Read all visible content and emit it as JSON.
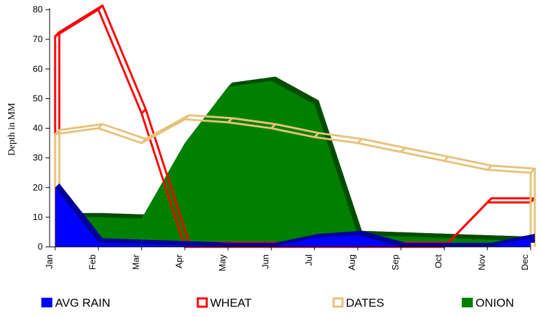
{
  "chart_data": {
    "type": "area",
    "title": "",
    "xlabel": "",
    "ylabel": "Depth in MM",
    "ylim": [
      0,
      80
    ],
    "yticks": [
      0,
      10,
      20,
      30,
      40,
      50,
      60,
      70,
      80
    ],
    "categories": [
      "Jan",
      "Feb",
      "Mar",
      "Apr",
      "May",
      "Jun",
      "Jul",
      "Aug",
      "Sep",
      "Oct",
      "Nov",
      "Dec"
    ],
    "series": [
      {
        "name": "AVG RAIN",
        "kind": "area",
        "color": "#0000ff",
        "values": [
          20,
          1.5,
          1,
          0.5,
          0,
          0,
          3,
          4,
          0,
          0,
          0,
          3
        ]
      },
      {
        "name": "WHEAT",
        "kind": "hollow-line",
        "color": "#ff0000",
        "values": [
          71,
          80,
          45,
          0,
          0,
          0,
          0,
          0,
          0,
          0,
          15,
          15
        ]
      },
      {
        "name": "DATES",
        "kind": "hollow-line",
        "color": "#e6c27a",
        "values": [
          38,
          40,
          35,
          43,
          42,
          40,
          37,
          35,
          32,
          29,
          26,
          25
        ]
      },
      {
        "name": "ONION",
        "kind": "area",
        "color": "#008000",
        "values": [
          10,
          10,
          9.5,
          35,
          54,
          56,
          48,
          4,
          3.5,
          3,
          2.5,
          2
        ]
      }
    ],
    "legend_position": "bottom"
  }
}
